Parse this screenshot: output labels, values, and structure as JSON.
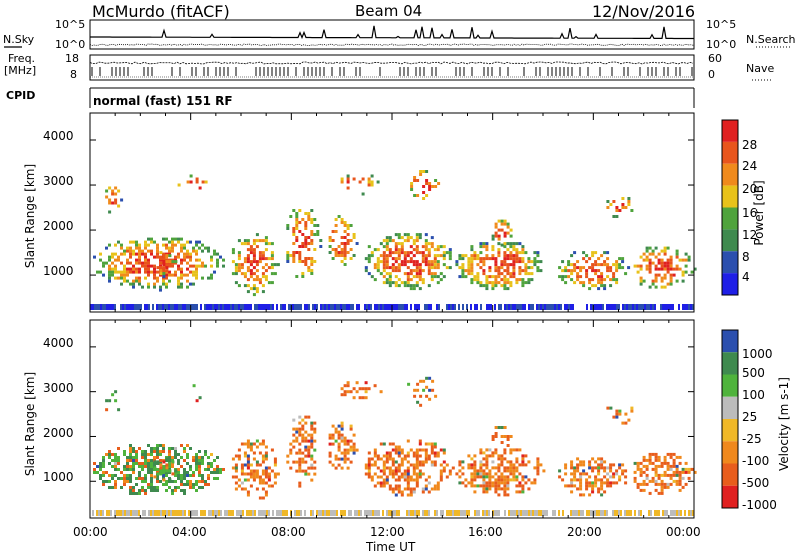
{
  "header": {
    "station": "McMurdo (fitACF)",
    "beam": "Beam 04",
    "date": "12/Nov/2016"
  },
  "strips": {
    "nsky_label": "N.Sky",
    "nsearch_label": "N.Search",
    "freq_label_line1": "Freq.",
    "freq_label_line2": "[MHz]",
    "nave_label": "Nave",
    "cpid_label": "CPID",
    "cpid_value": "normal (fast) 151 RF",
    "noise_ticks_left": [
      "10^5",
      "10^0"
    ],
    "noise_ticks_right": [
      "10^5",
      "10^0"
    ],
    "freq_ticks": [
      "18",
      "8"
    ],
    "nave_ticks": [
      "60",
      "0"
    ]
  },
  "colors": {
    "power_scale": [
      "#1f1fe6",
      "#2b4fae",
      "#3f8a4f",
      "#4fa33c",
      "#e8c21a",
      "#f08a1c",
      "#e8551c",
      "#e02020"
    ],
    "velocity_scale": [
      "#2b4fae",
      "#3f8a4f",
      "#4fb33c",
      "#bcbcbc",
      "#f0b828",
      "#f0881c",
      "#e85d1c",
      "#e02020"
    ]
  },
  "chart_data": [
    {
      "type": "heatmap",
      "name": "power",
      "ylabel": "Slant Range [km]",
      "yticks": [
        "1000",
        "2000",
        "3000",
        "4000"
      ],
      "ylim": [
        180,
        4600
      ],
      "colorbar": {
        "label": "Power [dB]",
        "ticks": [
          "4",
          "8",
          "12",
          "16",
          "20",
          "24",
          "28"
        ],
        "range": [
          0,
          30
        ]
      },
      "x_ticks": [
        "00:00",
        "04:00",
        "08:00",
        "12:00",
        "16:00",
        "20:00",
        "00:00"
      ]
    },
    {
      "type": "heatmap",
      "name": "velocity",
      "ylabel": "Slant Range [km]",
      "yticks": [
        "1000",
        "2000",
        "3000",
        "4000"
      ],
      "ylim": [
        180,
        4600
      ],
      "colorbar": {
        "label": "Velocity [m s-1]",
        "ticks": [
          "1000",
          "500",
          "100",
          "25",
          "-25",
          "-100",
          "-500",
          "-1000"
        ]
      },
      "x_ticks": [
        "00:00",
        "04:00",
        "08:00",
        "12:00",
        "16:00",
        "20:00",
        "00:00"
      ],
      "xlabel": "Time UT"
    }
  ]
}
